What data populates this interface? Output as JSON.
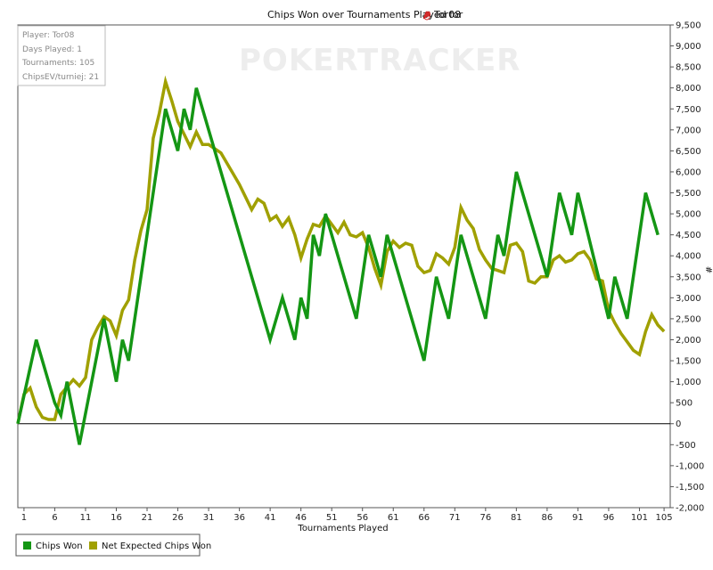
{
  "chart_data": {
    "type": "line",
    "title": "Chips Won over Tournaments Played for",
    "player_name": "Tor08",
    "xlabel": "Tournaments Played",
    "ylabel": "#",
    "xlim": [
      0,
      106
    ],
    "ylim": [
      -2000,
      9500
    ],
    "x_ticks": [
      1,
      6,
      11,
      16,
      21,
      26,
      31,
      36,
      41,
      46,
      51,
      56,
      61,
      66,
      71,
      76,
      81,
      86,
      91,
      96,
      101,
      105
    ],
    "y_ticks": [
      -2000,
      -1500,
      -1000,
      -500,
      0,
      500,
      1000,
      1500,
      2000,
      2500,
      3000,
      3500,
      4000,
      4500,
      5000,
      5500,
      6000,
      6500,
      7000,
      7500,
      8000,
      8500,
      9000,
      9500
    ],
    "y_tick_labels": [
      "-2,000",
      "-1,500",
      "-1,000",
      "-500",
      "0",
      "500",
      "1,000",
      "1,500",
      "2,000",
      "2,500",
      "3,000",
      "3,500",
      "4,000",
      "4,500",
      "5,000",
      "5,500",
      "6,000",
      "6,500",
      "7,000",
      "7,500",
      "8,000",
      "8,500",
      "9,000",
      "9,500"
    ],
    "watermark": "POKERTRACKER",
    "info": {
      "player": "Player: Tor08",
      "days": "Days Played: 1",
      "tournaments": "Tournaments: 105",
      "chipsev": "ChipsEV/turniej: 21"
    },
    "series": [
      {
        "name": "Chips Won",
        "color": "#149614",
        "points": [
          [
            0,
            0
          ],
          [
            3,
            2000
          ],
          [
            6,
            500
          ],
          [
            7,
            200
          ],
          [
            8,
            1000
          ],
          [
            10,
            -500
          ],
          [
            14,
            2500
          ],
          [
            16,
            1000
          ],
          [
            17,
            2000
          ],
          [
            18,
            1500
          ],
          [
            24,
            7500
          ],
          [
            26,
            6500
          ],
          [
            27,
            7500
          ],
          [
            28,
            7000
          ],
          [
            29,
            8000
          ],
          [
            41,
            2000
          ],
          [
            43,
            3000
          ],
          [
            45,
            2000
          ],
          [
            46,
            3000
          ],
          [
            47,
            2500
          ],
          [
            48,
            4500
          ],
          [
            49,
            4000
          ],
          [
            50,
            5000
          ],
          [
            55,
            2500
          ],
          [
            57,
            4500
          ],
          [
            59,
            3500
          ],
          [
            60,
            4500
          ],
          [
            66,
            1500
          ],
          [
            68,
            3500
          ],
          [
            70,
            2500
          ],
          [
            72,
            4500
          ],
          [
            76,
            2500
          ],
          [
            78,
            4500
          ],
          [
            79,
            4000
          ],
          [
            81,
            6000
          ],
          [
            86,
            3500
          ],
          [
            88,
            5500
          ],
          [
            90,
            4500
          ],
          [
            91,
            5500
          ],
          [
            96,
            2500
          ],
          [
            97,
            3500
          ],
          [
            99,
            2500
          ],
          [
            102,
            5500
          ],
          [
            104,
            4500
          ]
        ]
      },
      {
        "name": "Net Expected Chips Won",
        "color": "#a0a000",
        "points": [
          [
            0,
            0
          ],
          [
            1,
            700
          ],
          [
            2,
            850
          ],
          [
            3,
            400
          ],
          [
            4,
            150
          ],
          [
            5,
            100
          ],
          [
            6,
            100
          ],
          [
            7,
            700
          ],
          [
            9,
            1050
          ],
          [
            10,
            900
          ],
          [
            11,
            1100
          ],
          [
            12,
            2000
          ],
          [
            13,
            2300
          ],
          [
            14,
            2550
          ],
          [
            15,
            2450
          ],
          [
            16,
            2100
          ],
          [
            17,
            2700
          ],
          [
            18,
            2950
          ],
          [
            19,
            3900
          ],
          [
            20,
            4600
          ],
          [
            21,
            5100
          ],
          [
            22,
            6800
          ],
          [
            23,
            7400
          ],
          [
            24,
            8150
          ],
          [
            25,
            7700
          ],
          [
            26,
            7200
          ],
          [
            27,
            6900
          ],
          [
            28,
            6600
          ],
          [
            29,
            6950
          ],
          [
            30,
            6650
          ],
          [
            31,
            6650
          ],
          [
            32,
            6550
          ],
          [
            33,
            6450
          ],
          [
            34,
            6200
          ],
          [
            35,
            5950
          ],
          [
            36,
            5700
          ],
          [
            37,
            5400
          ],
          [
            38,
            5100
          ],
          [
            39,
            5350
          ],
          [
            40,
            5250
          ],
          [
            41,
            4850
          ],
          [
            42,
            4950
          ],
          [
            43,
            4700
          ],
          [
            44,
            4900
          ],
          [
            45,
            4500
          ],
          [
            46,
            3950
          ],
          [
            47,
            4400
          ],
          [
            48,
            4750
          ],
          [
            49,
            4700
          ],
          [
            50,
            4950
          ],
          [
            51,
            4750
          ],
          [
            52,
            4550
          ],
          [
            53,
            4800
          ],
          [
            54,
            4500
          ],
          [
            55,
            4450
          ],
          [
            56,
            4550
          ],
          [
            57,
            4200
          ],
          [
            58,
            3700
          ],
          [
            59,
            3300
          ],
          [
            60,
            4100
          ],
          [
            61,
            4350
          ],
          [
            62,
            4200
          ],
          [
            63,
            4300
          ],
          [
            64,
            4250
          ],
          [
            65,
            3750
          ],
          [
            66,
            3600
          ],
          [
            67,
            3650
          ],
          [
            68,
            4050
          ],
          [
            69,
            3950
          ],
          [
            70,
            3800
          ],
          [
            71,
            4200
          ],
          [
            72,
            5150
          ],
          [
            73,
            4850
          ],
          [
            74,
            4650
          ],
          [
            75,
            4150
          ],
          [
            76,
            3900
          ],
          [
            77,
            3700
          ],
          [
            78,
            3650
          ],
          [
            79,
            3600
          ],
          [
            80,
            4250
          ],
          [
            81,
            4300
          ],
          [
            82,
            4100
          ],
          [
            83,
            3400
          ],
          [
            84,
            3350
          ],
          [
            85,
            3500
          ],
          [
            86,
            3500
          ],
          [
            87,
            3900
          ],
          [
            88,
            4000
          ],
          [
            89,
            3850
          ],
          [
            90,
            3900
          ],
          [
            91,
            4050
          ],
          [
            92,
            4100
          ],
          [
            93,
            3900
          ],
          [
            94,
            3450
          ],
          [
            95,
            3400
          ],
          [
            96,
            2700
          ],
          [
            97,
            2400
          ],
          [
            98,
            2150
          ],
          [
            99,
            1950
          ],
          [
            100,
            1750
          ],
          [
            101,
            1650
          ],
          [
            102,
            2200
          ],
          [
            103,
            2600
          ],
          [
            104,
            2350
          ],
          [
            105,
            2200
          ]
        ]
      }
    ],
    "legend_position": "bottom-left"
  }
}
